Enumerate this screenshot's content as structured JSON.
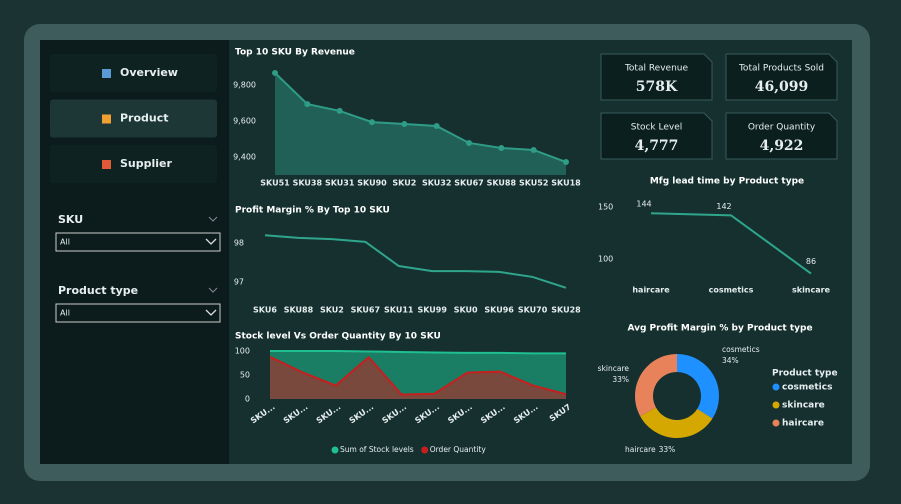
{
  "nav": {
    "items": [
      "Overview",
      "Product",
      "Supplier"
    ],
    "active": 1
  },
  "filters": [
    {
      "label": "SKU",
      "value": "All"
    },
    {
      "label": "Product type",
      "value": "All"
    }
  ],
  "kpis": [
    {
      "label": "Total Revenue",
      "value": "578K"
    },
    {
      "label": "Total Products Sold",
      "value": "46,099"
    },
    {
      "label": "Stock Level",
      "value": "4,777"
    },
    {
      "label": "Order Quantity",
      "value": "4,922"
    }
  ],
  "chart_data": [
    {
      "type": "area",
      "title": "Top 10 SKU By Revenue",
      "categories": [
        "SKU51",
        "SKU38",
        "SKU31",
        "SKU90",
        "SKU2",
        "SKU32",
        "SKU67",
        "SKU88",
        "SKU52",
        "SKU18"
      ],
      "values": [
        9867,
        9694,
        9656,
        9594,
        9583,
        9572,
        9478,
        9450,
        9439,
        9372
      ],
      "color": "#2f9c86",
      "markers": true,
      "ylim": [
        9300,
        9900
      ],
      "yticks": [
        {
          "value": 9400,
          "label": "9,400"
        },
        {
          "value": 9600,
          "label": "9,600"
        },
        {
          "value": 9800,
          "label": "9,800"
        }
      ]
    },
    {
      "type": "line",
      "title": "Profit Margin % By Top 10 SKU",
      "categories": [
        "SKU6",
        "SKU88",
        "SKU2",
        "SKU67",
        "SKU11",
        "SKU99",
        "SKU0",
        "SKU96",
        "SKU70",
        "SKU28"
      ],
      "values": [
        98.2,
        98.13,
        98.1,
        98.03,
        97.41,
        97.28,
        97.28,
        97.26,
        97.13,
        96.85
      ],
      "color": "#2fa58c",
      "ylim": [
        96.7,
        98.4
      ],
      "yticks": [
        97,
        98
      ]
    },
    {
      "type": "area",
      "title": "Stock level Vs Order Quantity By 10 SKU",
      "categories": [
        "SKU...",
        "SKU...",
        "SKU...",
        "SKU...",
        "SKU...",
        "SKU...",
        "SKU...",
        "SKU...",
        "SKU...",
        "SKU7"
      ],
      "series": [
        {
          "name": "Sum of Stock levels",
          "color": "#1fbf8f",
          "values": [
            100,
            100,
            100,
            99,
            98,
            97,
            96,
            96,
            95,
            95
          ]
        },
        {
          "name": "Order Quantity",
          "color": "#c81e1e",
          "values": [
            88,
            55,
            28,
            87,
            9,
            11,
            55,
            57,
            28,
            10
          ]
        }
      ],
      "ylim": [
        0,
        100
      ],
      "yticks": [
        0,
        50,
        100
      ]
    },
    {
      "type": "line",
      "title": "Mfg lead time by Product type",
      "categories": [
        "haircare",
        "cosmetics",
        "skincare"
      ],
      "values": [
        144,
        142,
        86
      ],
      "color": "#2fa58c",
      "data_labels": true,
      "ylim": [
        75,
        155
      ],
      "yticks": [
        100,
        150
      ]
    },
    {
      "type": "pie",
      "title": "Avg Profit Margin % by Product type",
      "categories": [
        "cosmetics",
        "skincare",
        "haircare"
      ],
      "values": [
        34,
        33,
        33
      ],
      "value_labels": [
        "34%",
        "33%",
        "33%"
      ],
      "colors": [
        "#1e90ff",
        "#d4a800",
        "#e8825a"
      ],
      "legend_title": "Product type"
    }
  ]
}
